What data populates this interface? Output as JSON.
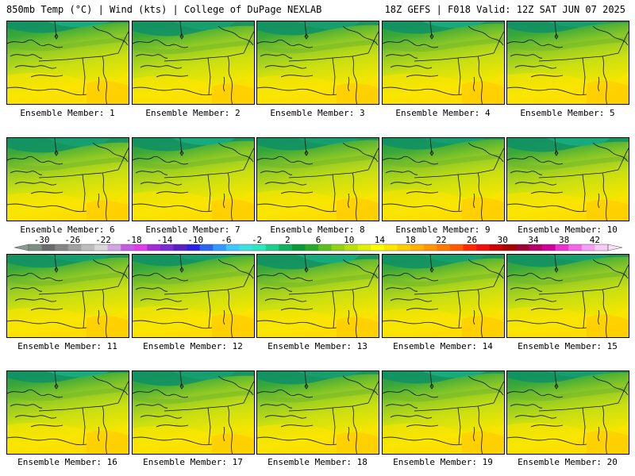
{
  "header": {
    "title_left": "850mb Temp (°C) | Wind (kts) | College of DuPage NEXLAB",
    "title_right": "18Z GEFS | F018 Valid: 12Z SAT JUN 07 2025"
  },
  "panels": [
    {
      "label": "Ensemble Member: 1"
    },
    {
      "label": "Ensemble Member: 2"
    },
    {
      "label": "Ensemble Member: 3"
    },
    {
      "label": "Ensemble Member: 4"
    },
    {
      "label": "Ensemble Member: 5"
    },
    {
      "label": "Ensemble Member: 6"
    },
    {
      "label": "Ensemble Member: 7"
    },
    {
      "label": "Ensemble Member: 8"
    },
    {
      "label": "Ensemble Member: 9"
    },
    {
      "label": "Ensemble Member: 10"
    },
    {
      "label": "Ensemble Member: 11"
    },
    {
      "label": "Ensemble Member: 12"
    },
    {
      "label": "Ensemble Member: 13"
    },
    {
      "label": "Ensemble Member: 14"
    },
    {
      "label": "Ensemble Member: 15"
    },
    {
      "label": "Ensemble Member: 16"
    },
    {
      "label": "Ensemble Member: 17"
    },
    {
      "label": "Ensemble Member: 18"
    },
    {
      "label": "Ensemble Member: 19"
    },
    {
      "label": "Ensemble Member: 20"
    }
  ],
  "colorbar": {
    "labels": [
      "-30",
      "-26",
      "-22",
      "-18",
      "-14",
      "-10",
      "-6",
      "-2",
      "2",
      "6",
      "10",
      "14",
      "18",
      "22",
      "26",
      "30",
      "34",
      "38",
      "42"
    ],
    "colors": [
      "#7c8e84",
      "#6b6b6b",
      "#858585",
      "#a0a0a0",
      "#bdbdbd",
      "#d8d8d8",
      "#d4a3e3",
      "#c25fe0",
      "#e23ce8",
      "#a32bd3",
      "#7a2bd3",
      "#5a1fc2",
      "#2c1fe0",
      "#2866f0",
      "#3399ff",
      "#3fc6ff",
      "#3fe0e0",
      "#2ee6bd",
      "#20cc90",
      "#12b060",
      "#0a9a3a",
      "#2aa82a",
      "#5cbd1e",
      "#8fd216",
      "#b8e010",
      "#dfef08",
      "#ffff00",
      "#ffe600",
      "#ffcc00",
      "#ffb000",
      "#ff9500",
      "#ff7800",
      "#ff5a00",
      "#ff2a00",
      "#ee1010",
      "#cc0000",
      "#a80000",
      "#990033",
      "#b3006b",
      "#cc0099",
      "#e633cc",
      "#f066e6",
      "#f59ef5",
      "#f7caf7"
    ]
  }
}
